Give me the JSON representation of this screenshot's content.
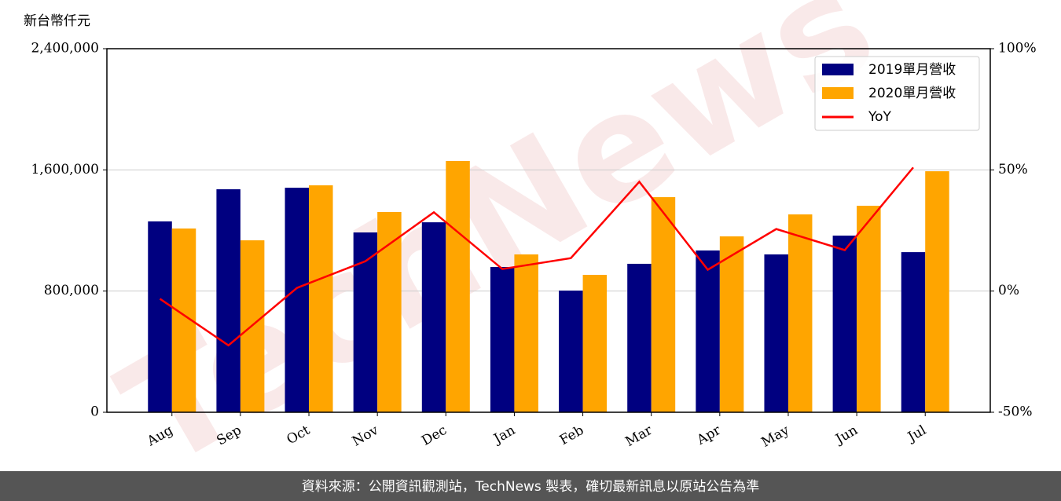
{
  "chart_data": {
    "type": "bar-line",
    "y_label": "新台幣仟元",
    "footer": "資料來源：公開資訊觀測站，TechNews 製表，確切最新訊息以原站公告為準",
    "watermark": "TechNews",
    "categories": [
      "Aug",
      "Sep",
      "Oct",
      "Nov",
      "Dec",
      "Jan",
      "Feb",
      "Mar",
      "Apr",
      "May",
      "Jun",
      "Jul"
    ],
    "series": [
      {
        "name": "2019單月營收",
        "color": "#000080",
        "type": "bar",
        "values": [
          1260000,
          1472000,
          1482000,
          1187000,
          1254000,
          959000,
          803000,
          980000,
          1068000,
          1042000,
          1166000,
          1057000
        ]
      },
      {
        "name": "2020單月營收",
        "color": "#ffa500",
        "type": "bar",
        "values": [
          1213000,
          1135000,
          1498000,
          1322000,
          1659000,
          1042000,
          907000,
          1420000,
          1161000,
          1306000,
          1363000,
          1591000
        ]
      },
      {
        "name": "YoY",
        "color": "#ff0000",
        "type": "line",
        "axis": "y2",
        "values": [
          -3.2,
          -22.4,
          1.3,
          12.3,
          32.5,
          9.1,
          13.6,
          45.1,
          8.8,
          25.6,
          16.9,
          51.0
        ]
      }
    ],
    "ylim": [
      0,
      2400000
    ],
    "yticks": [
      0,
      {
        "value": 800000,
        "label": "800,000"
      },
      {
        "value": 1600000,
        "label": "1,600,000"
      },
      {
        "value": 2400000,
        "label": "2,400,000"
      }
    ],
    "y2lim": [
      -50,
      100
    ],
    "y2ticks": [
      {
        "value": -50,
        "label": "-50%"
      },
      {
        "value": 0,
        "label": "0%"
      },
      {
        "value": 50,
        "label": "50%"
      },
      {
        "value": 100,
        "label": "100%"
      }
    ],
    "grid": true,
    "legend": "upper right"
  }
}
